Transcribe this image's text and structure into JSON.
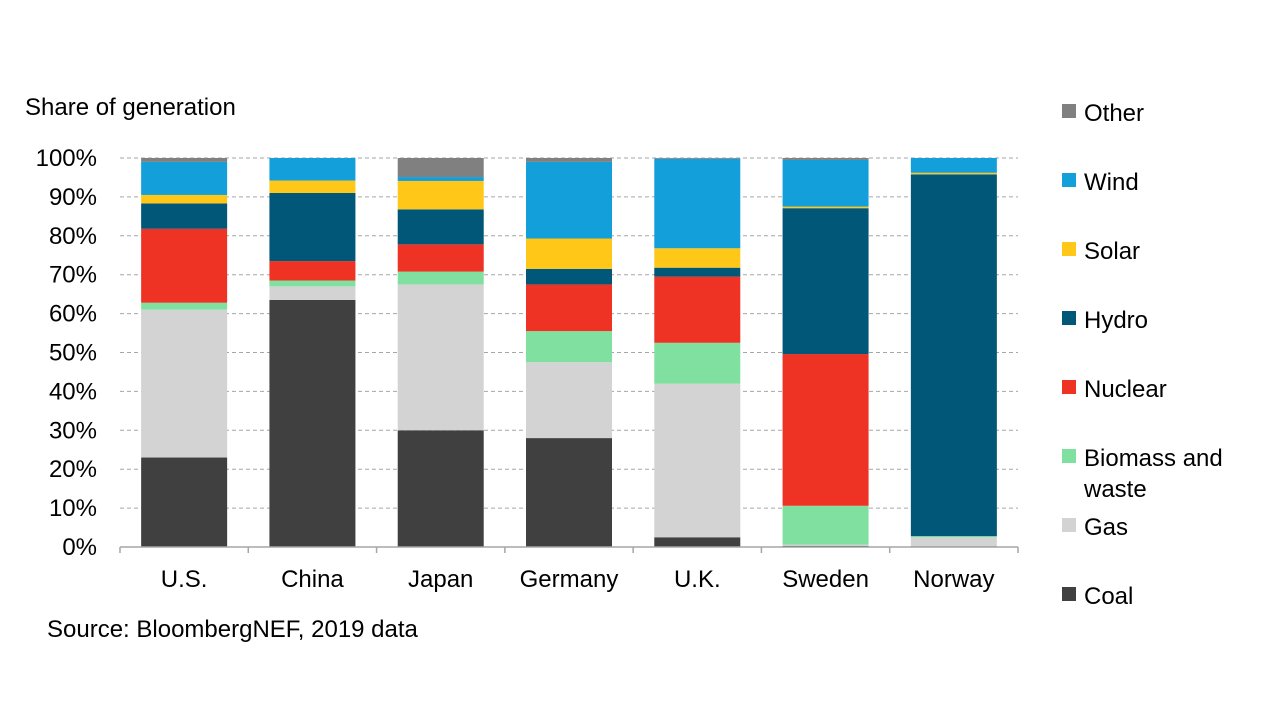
{
  "chart_data": {
    "type": "bar",
    "stacked": true,
    "ylabel": "Share of generation",
    "source": "Source:  BloombergNEF, 2019 data",
    "yticks": [
      "0%",
      "10%",
      "20%",
      "30%",
      "40%",
      "50%",
      "60%",
      "70%",
      "80%",
      "90%",
      "100%"
    ],
    "ylim": [
      0,
      100
    ],
    "grid": true,
    "legend_position": "right",
    "categories": [
      "U.S.",
      "China",
      "Japan",
      "Germany",
      "U.K.",
      "Sweden",
      "Norway"
    ],
    "series": [
      {
        "name": "Coal",
        "color": "#404040",
        "values": [
          23,
          63.5,
          30,
          28,
          2.5,
          0.3,
          0.2
        ]
      },
      {
        "name": "Gas",
        "color": "#d3d3d3",
        "values": [
          38,
          3.5,
          37.5,
          19.5,
          39.5,
          0.3,
          2.3
        ]
      },
      {
        "name": "Biomass and waste",
        "color": "#7fe0a0",
        "values": [
          1.8,
          1.5,
          3.3,
          8,
          10.5,
          10,
          0.3
        ]
      },
      {
        "name": "Nuclear",
        "color": "#ee3224",
        "values": [
          19,
          5,
          7,
          12,
          17,
          39,
          0
        ]
      },
      {
        "name": "Hydro",
        "color": "#005778",
        "values": [
          6.5,
          17.5,
          9,
          4,
          2.3,
          37.5,
          93
        ]
      },
      {
        "name": "Solar",
        "color": "#ffc718",
        "values": [
          2.2,
          3.2,
          7.3,
          7.8,
          5,
          0.4,
          0.4
        ]
      },
      {
        "name": "Wind",
        "color": "#139fda",
        "values": [
          8.5,
          5.8,
          1,
          19.7,
          23,
          12,
          3.8
        ]
      },
      {
        "name": "Other",
        "color": "#808080",
        "values": [
          1,
          0,
          4.9,
          1,
          0.2,
          0.5,
          0
        ]
      }
    ]
  },
  "legend_order": [
    "Other",
    "Wind",
    "Solar",
    "Hydro",
    "Nuclear",
    "Biomass and waste",
    "Gas",
    "Coal"
  ]
}
